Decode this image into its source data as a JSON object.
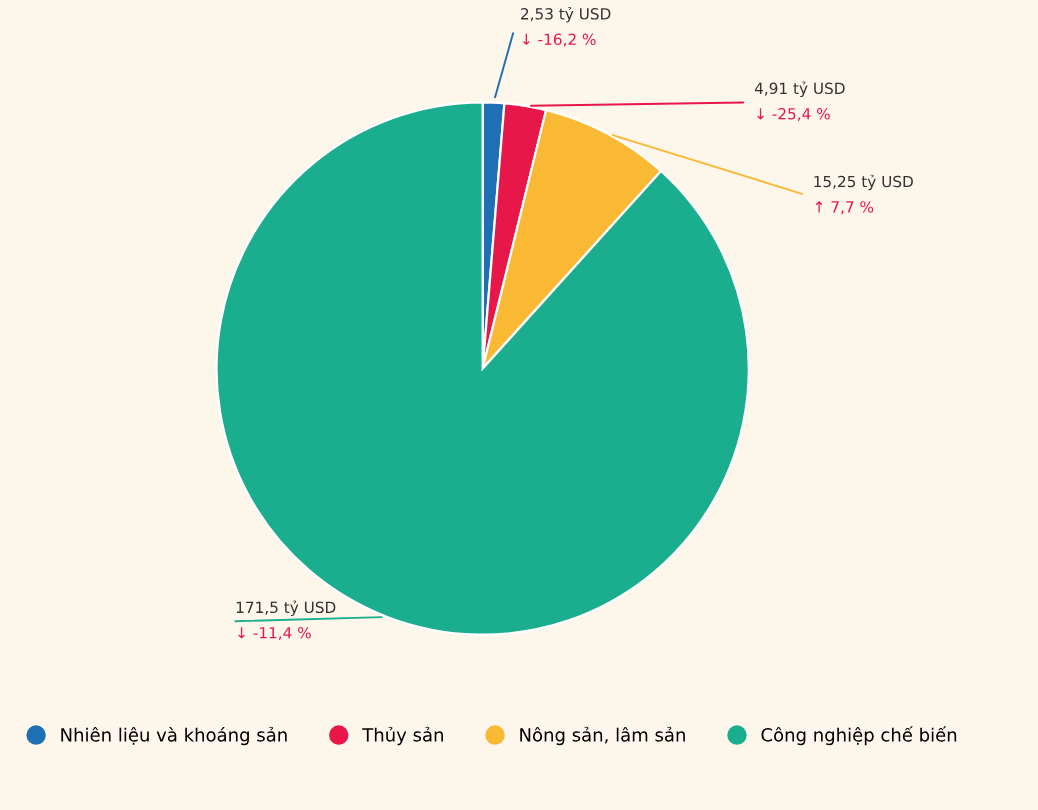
{
  "chart_data": {
    "type": "pie",
    "categories": [
      "Nhiên liệu và khoáng sản",
      "Thủy sản",
      "Nông sản, lâm sản",
      "Công nghiệp chế biến"
    ],
    "values": [
      2.53,
      4.91,
      15.25,
      171.5
    ],
    "colors": [
      "#1f6fb5",
      "#e8174a",
      "#f9b934",
      "#1aae8e"
    ],
    "value_labels": [
      "2,53 tỷ USD",
      "4,91 tỷ USD",
      "15,25 tỷ USD",
      "171,5 tỷ USD"
    ],
    "annotations": [
      "↓ -16,2 %",
      "↓ -25,4 %",
      "↑ 7,7 %",
      "↓ -11,4 %"
    ],
    "legend": "bottom"
  }
}
